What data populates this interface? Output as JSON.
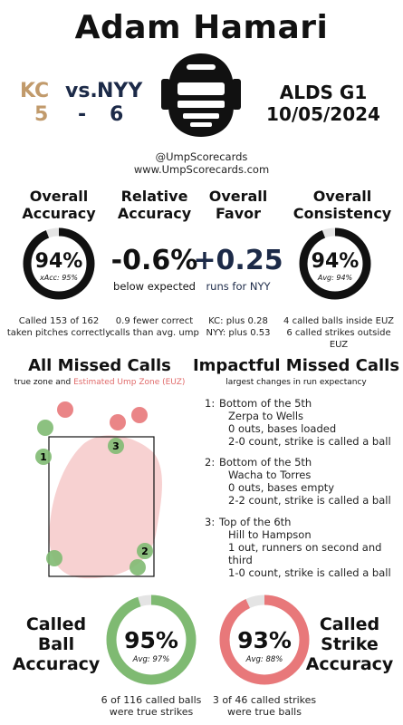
{
  "header": {
    "umpire_name": "Adam Hamari",
    "away_team": "KC",
    "vs": "vs.",
    "home_team": "NYY",
    "away_score": "5",
    "dash": "-",
    "home_score": "6",
    "series": "ALDS G1",
    "date": "10/05/2024",
    "handle": "@UmpScorecards",
    "website": "www.UmpScorecards.com",
    "colors": {
      "away": "#c19a6b",
      "home": "#1c2a48",
      "green": "#7fba72",
      "red": "#e8787a",
      "euz": "#f6c9c9"
    }
  },
  "metrics": {
    "overall_accuracy": {
      "title_line1": "Overall",
      "title_line2": "Accuracy",
      "value": "94%",
      "sub": "xAcc: 95%",
      "note_line1": "Called 153 of 162",
      "note_line2": "taken pitches correctly",
      "ring_fraction": 0.94
    },
    "relative_accuracy": {
      "title_line1": "Relative",
      "title_line2": "Accuracy",
      "value": "-0.6%",
      "sub": "below expected",
      "note_line1": "0.9 fewer correct",
      "note_line2": "calls than avg. ump"
    },
    "overall_favor": {
      "title_line1": "Overall",
      "title_line2": "Favor",
      "value": "+0.25",
      "sub": "runs for NYY",
      "note_line1": "KC: plus 0.28",
      "note_line2": "NYY: plus 0.53"
    },
    "overall_consistency": {
      "title_line1": "Overall",
      "title_line2": "Consistency",
      "value": "94%",
      "sub": "Avg: 94%",
      "note_line1": "4 called balls inside EUZ",
      "note_line2": "6 called strikes outside EUZ",
      "ring_fraction": 0.94
    }
  },
  "missed_calls": {
    "title": "All Missed Calls",
    "legend_prefix": "true zone and",
    "legend_euz": "Estimated Ump Zone (EUZ)",
    "markers": [
      {
        "label": "",
        "kind": "red"
      },
      {
        "label": "",
        "kind": "red"
      },
      {
        "label": "",
        "kind": "red"
      },
      {
        "label": "",
        "kind": "green"
      },
      {
        "label": "1",
        "kind": "green"
      },
      {
        "label": "3",
        "kind": "green"
      },
      {
        "label": "2",
        "kind": "green"
      },
      {
        "label": "",
        "kind": "green"
      },
      {
        "label": "",
        "kind": "green"
      }
    ]
  },
  "impactful": {
    "title": "Impactful Missed Calls",
    "subtitle": "largest changes in run expectancy",
    "items": [
      {
        "num": "1:",
        "line1": "Bottom of the 5th",
        "line2": "Zerpa to Wells",
        "line3": "0 outs, bases loaded",
        "line4": "2-0 count, strike is called a ball"
      },
      {
        "num": "2:",
        "line1": "Bottom of the 5th",
        "line2": "Wacha to Torres",
        "line3": "0 outs, bases empty",
        "line4": "2-2 count, strike is called a ball"
      },
      {
        "num": "3:",
        "line1": "Top of the 6th",
        "line2": "Hill to Hampson",
        "line3": "1 out, runners on second and third",
        "line4": "1-0 count, strike is called a ball"
      }
    ]
  },
  "bottom": {
    "ball_label_1": "Called",
    "ball_label_2": "Ball",
    "ball_label_3": "Accuracy",
    "ball_value": "95%",
    "ball_avg": "Avg: 97%",
    "ball_note_1": "6 of 116 called balls",
    "ball_note_2": "were true strikes",
    "ball_fraction": 0.95,
    "strike_label_1": "Called",
    "strike_label_2": "Strike",
    "strike_label_3": "Accuracy",
    "strike_value": "93%",
    "strike_avg": "Avg: 88%",
    "strike_note_1": "3 of 46 called strikes",
    "strike_note_2": "were true balls",
    "strike_fraction": 0.93
  }
}
